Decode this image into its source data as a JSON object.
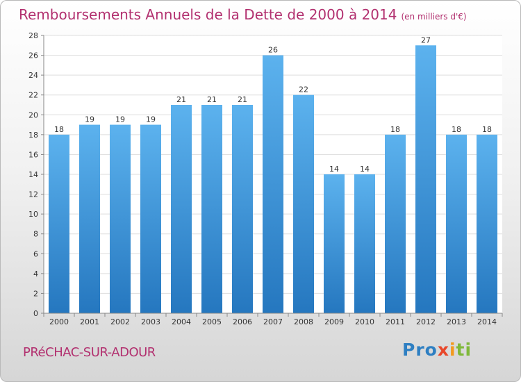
{
  "header": {
    "title": "Remboursements Annuels de la Dette de 2000 à 2014",
    "subtitle": "(en milliers d'€)"
  },
  "footer": {
    "commune": "PRéCHAC-SUR-ADOUR",
    "logo": [
      "Pro",
      "x",
      "i",
      "ti"
    ]
  },
  "colors": {
    "title": "#b2306f",
    "bar_top": "#5cb2ee",
    "bar_bottom": "#2577bf",
    "grid": "#dddddd"
  },
  "chart_data": {
    "type": "bar",
    "title": "Remboursements Annuels de la Dette de 2000 à 2014",
    "subtitle": "(en milliers d'€)",
    "categories": [
      "2000",
      "2001",
      "2002",
      "2003",
      "2004",
      "2005",
      "2006",
      "2007",
      "2008",
      "2009",
      "2010",
      "2011",
      "2012",
      "2013",
      "2014"
    ],
    "values": [
      18,
      19,
      19,
      19,
      21,
      21,
      21,
      26,
      22,
      14,
      14,
      18,
      27,
      18,
      18
    ],
    "ylim": [
      0,
      28
    ],
    "yticks": [
      0,
      2,
      4,
      6,
      8,
      10,
      12,
      14,
      16,
      18,
      20,
      22,
      24,
      26,
      28
    ],
    "grid": true,
    "data_labels": true
  }
}
